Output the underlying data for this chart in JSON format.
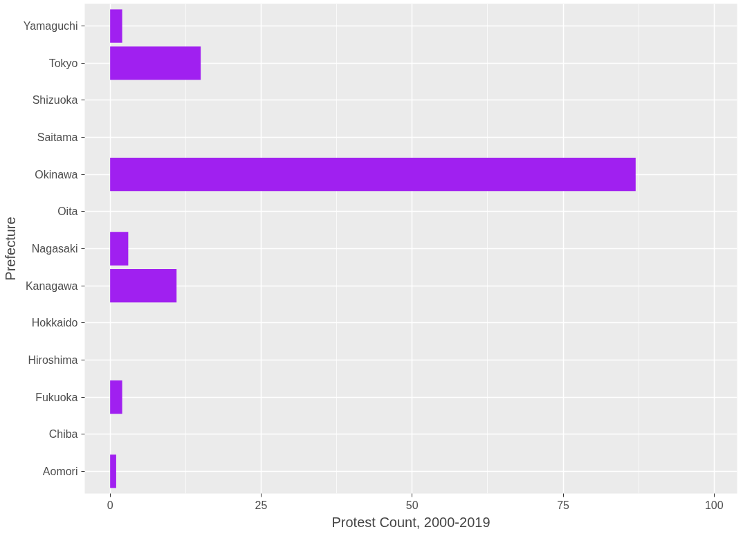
{
  "chart_data": {
    "type": "bar",
    "orientation": "horizontal",
    "xlabel": "Protest Count, 2000-2019",
    "ylabel": "Prefecture",
    "categories": [
      "Yamaguchi",
      "Tokyo",
      "Shizuoka",
      "Saitama",
      "Okinawa",
      "Oita",
      "Nagasaki",
      "Kanagawa",
      "Hokkaido",
      "Hiroshima",
      "Fukuoka",
      "Chiba",
      "Aomori"
    ],
    "values": [
      2,
      15,
      0,
      0,
      87,
      0,
      3,
      11,
      0,
      0,
      2,
      0,
      1
    ],
    "color": "#a020f0",
    "xlim": [
      -4.2,
      103.8
    ],
    "xticks": [
      0,
      25,
      50,
      75,
      100
    ],
    "grid": true
  }
}
